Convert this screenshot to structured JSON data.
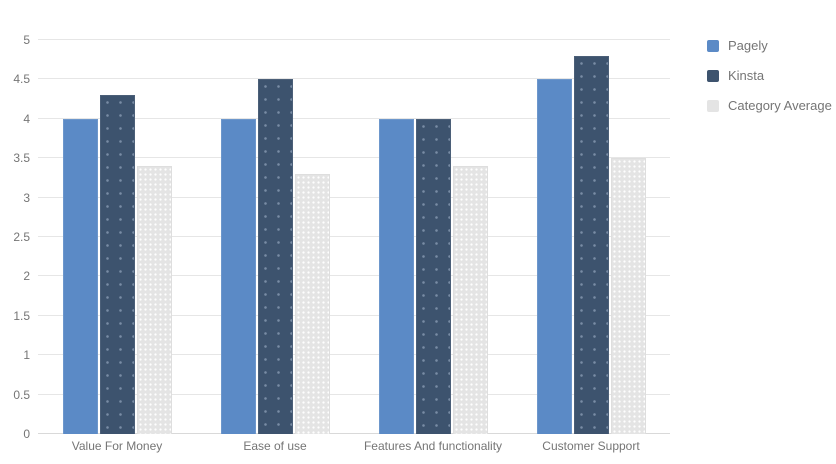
{
  "chart_data": {
    "type": "bar",
    "title": "",
    "categories": [
      "Value For Money",
      "Ease of use",
      "Features And functionality",
      "Customer Support"
    ],
    "series": [
      {
        "name": "Pagely",
        "color": "#5b8ac6",
        "values": [
          4.0,
          4.0,
          4.0,
          4.5
        ]
      },
      {
        "name": "Kinsta",
        "color": "#3d536e",
        "values": [
          4.3,
          4.5,
          4.0,
          4.8
        ]
      },
      {
        "name": "Category Average",
        "color": "#e4e4e4",
        "values": [
          3.4,
          3.3,
          3.4,
          3.5
        ]
      }
    ],
    "xlabel": "",
    "ylabel": "",
    "ylim": [
      0,
      5
    ],
    "yticks": [
      "0",
      "0.5",
      "1",
      "1.5",
      "2",
      "2.5",
      "3",
      "3.5",
      "4",
      "4.5",
      "5"
    ],
    "grid": true,
    "legend_position": "right"
  },
  "colors": {
    "background": "#ffffff",
    "gridline": "#e6e6e6",
    "baseline": "#d9d9d9",
    "axis_text": "#757575",
    "legend_text": "#757575"
  }
}
